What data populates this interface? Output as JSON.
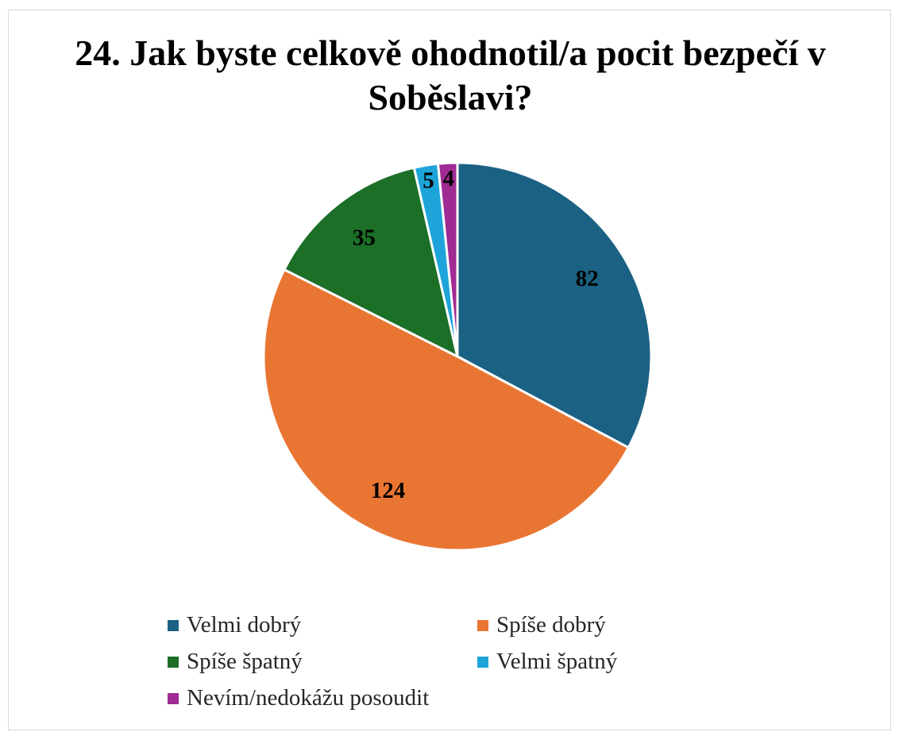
{
  "chart_data": {
    "type": "pie",
    "title": "24. Jak byste celkově ohodnotil/a pocit bezpečí v Soběslavi?",
    "categories": [
      "Velmi dobrý",
      "Spíše dobrý",
      "Spíše špatný",
      "Velmi špatný",
      "Nevím/nedokážu posoudit"
    ],
    "values": [
      82,
      124,
      35,
      5,
      4
    ],
    "colors": [
      "#1b6183",
      "#e97532",
      "#1b6f27",
      "#1ea4d8",
      "#a02b93"
    ],
    "legend_position": "bottom",
    "data_labels": true
  }
}
